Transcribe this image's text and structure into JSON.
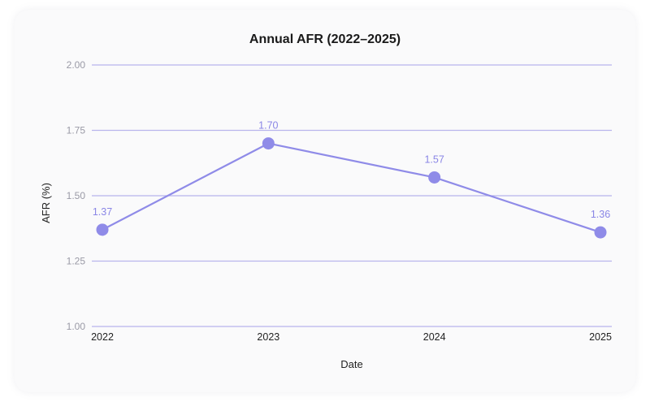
{
  "colors": {
    "series": "#8f8be8",
    "grid": "#b8b5ec",
    "card_background": "#fafafb"
  },
  "chart_data": {
    "type": "line",
    "title": "Annual AFR (2022–2025)",
    "xlabel": "Date",
    "ylabel": "AFR (%)",
    "categories": [
      "2022",
      "2023",
      "2024",
      "2025"
    ],
    "values": [
      1.37,
      1.7,
      1.57,
      1.36
    ],
    "data_labels": [
      "1.37",
      "1.70",
      "1.57",
      "1.36"
    ],
    "ylim": [
      1.0,
      2.0
    ],
    "yticks": [
      1.0,
      1.25,
      1.5,
      1.75,
      2.0
    ],
    "ytick_labels": [
      "1.00",
      "1.25",
      "1.50",
      "1.75",
      "2.00"
    ],
    "grid": true,
    "grid_axis": "y",
    "legend": false,
    "markers": true
  }
}
